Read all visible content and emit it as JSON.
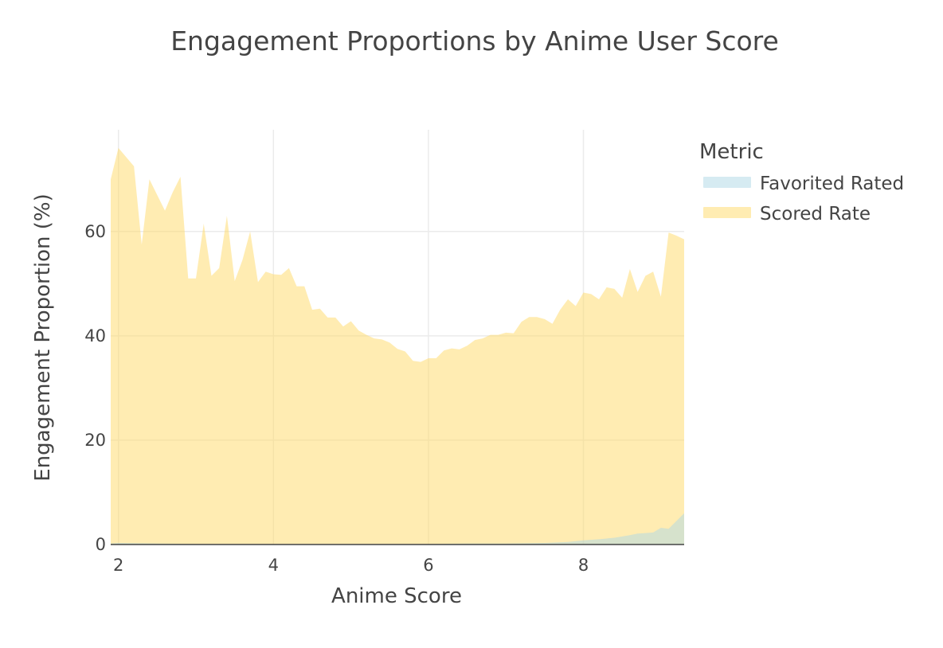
{
  "chart_data": {
    "type": "area",
    "title": "Engagement Proportions by Anime User Score",
    "xlabel": "Anime Score",
    "ylabel": "Engagement Proportion (%)",
    "xlim": [
      1.9,
      9.3
    ],
    "ylim": [
      0,
      79.5
    ],
    "x_ticks": [
      2,
      4,
      6,
      8
    ],
    "y_ticks": [
      0,
      20,
      40,
      60
    ],
    "x_tick_labels": [
      "2",
      "4",
      "6",
      "8"
    ],
    "y_tick_labels": [
      "0",
      "20",
      "40",
      "60"
    ],
    "grid": true,
    "legend": {
      "title": "Metric",
      "placement": "right"
    },
    "series": [
      {
        "name": "Favorited Rated",
        "color": "#add8e6",
        "x": [
          1.9,
          2.0,
          2.5,
          3.0,
          3.5,
          4.0,
          4.5,
          5.0,
          5.5,
          6.0,
          6.5,
          7.0,
          7.5,
          7.8,
          8.0,
          8.2,
          8.4,
          8.6,
          8.7,
          8.8,
          8.9,
          9.0,
          9.1,
          9.2,
          9.3
        ],
        "y": [
          0.2,
          0.3,
          0.2,
          0.1,
          0.1,
          0.1,
          0.1,
          0.1,
          0.1,
          0.1,
          0.2,
          0.2,
          0.3,
          0.5,
          0.8,
          1.0,
          1.3,
          1.8,
          2.1,
          2.2,
          2.3,
          3.2,
          3.0,
          4.5,
          6.0
        ]
      },
      {
        "name": "Scored Rate",
        "color": "#ffd966",
        "x": [
          1.9,
          2.0,
          2.2,
          2.3,
          2.4,
          2.6,
          2.7,
          2.8,
          2.9,
          3.0,
          3.1,
          3.2,
          3.3,
          3.4,
          3.5,
          3.6,
          3.7,
          3.8,
          3.9,
          4.0,
          4.1,
          4.2,
          4.3,
          4.4,
          4.5,
          4.6,
          4.7,
          4.8,
          4.9,
          5.0,
          5.1,
          5.2,
          5.3,
          5.4,
          5.5,
          5.6,
          5.7,
          5.8,
          5.9,
          6.0,
          6.1,
          6.2,
          6.3,
          6.4,
          6.5,
          6.6,
          6.7,
          6.8,
          6.9,
          7.0,
          7.1,
          7.2,
          7.3,
          7.4,
          7.5,
          7.6,
          7.7,
          7.8,
          7.9,
          8.0,
          8.1,
          8.2,
          8.3,
          8.4,
          8.5,
          8.6,
          8.7,
          8.8,
          8.9,
          9.0,
          9.1,
          9.2,
          9.3
        ],
        "y": [
          70,
          76,
          72.5,
          57.5,
          70,
          64,
          67.5,
          70.5,
          51,
          51,
          61.5,
          51.5,
          53,
          63,
          50.5,
          54.5,
          60,
          50.3,
          52.3,
          51.8,
          51.7,
          53,
          49.5,
          49.5,
          45,
          45.2,
          43.5,
          43.5,
          41.8,
          42.8,
          41,
          40.2,
          39.5,
          39.3,
          38.7,
          37.5,
          37,
          35.2,
          35,
          35.7,
          35.7,
          37.2,
          37.6,
          37.4,
          38.1,
          39.2,
          39.5,
          40.2,
          40.2,
          40.6,
          40.5,
          42.7,
          43.6,
          43.6,
          43.2,
          42.3,
          45,
          47,
          45.7,
          48.3,
          48,
          47,
          49.3,
          49,
          47.3,
          52.8,
          48.4,
          51.5,
          52.3,
          47.5,
          59.8,
          59.2,
          58.5
        ]
      }
    ]
  }
}
